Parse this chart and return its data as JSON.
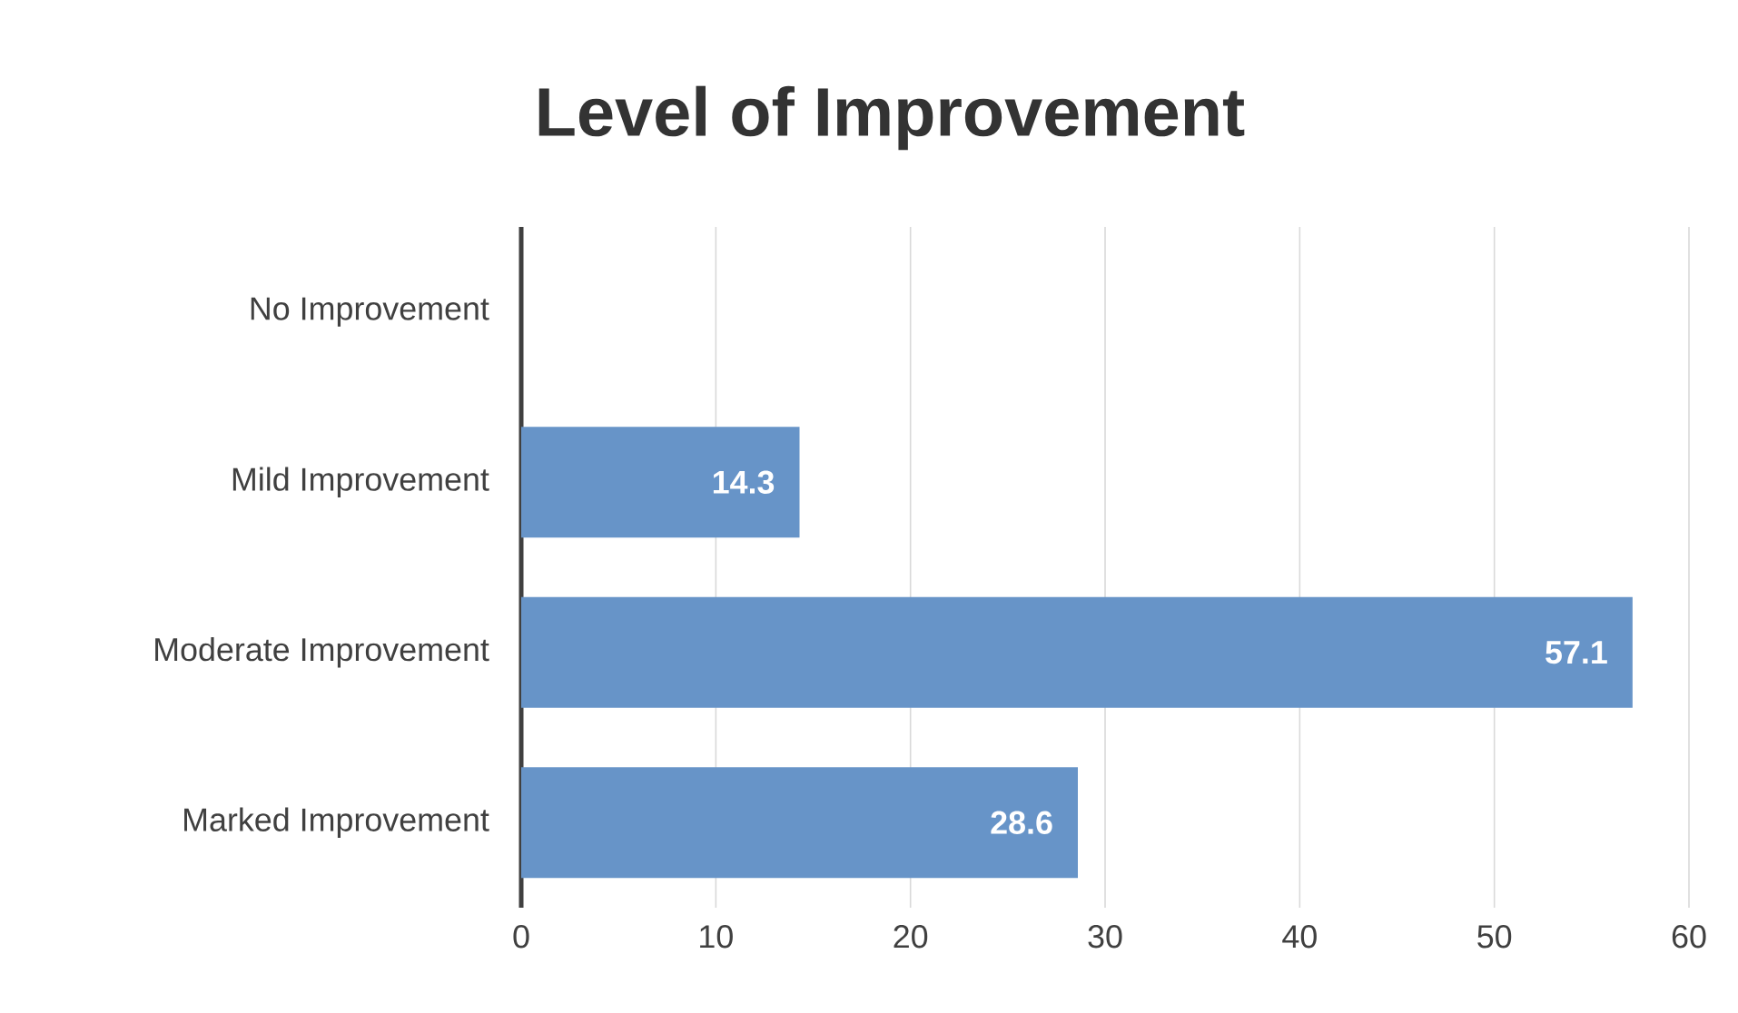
{
  "chart_data": {
    "type": "bar",
    "orientation": "horizontal",
    "title": "Level of Improvement",
    "categories": [
      "No Improvement",
      "Mild Improvement",
      "Moderate Improvement",
      "Marked Improvement"
    ],
    "values": [
      0,
      14.3,
      57.1,
      28.6
    ],
    "value_labels": [
      null,
      "14.3",
      "57.1",
      "28.6"
    ],
    "color": "#6794c8",
    "xlim": [
      0,
      60
    ],
    "xticks": [
      0,
      10,
      20,
      30,
      40,
      50,
      60
    ],
    "grid": "x"
  }
}
